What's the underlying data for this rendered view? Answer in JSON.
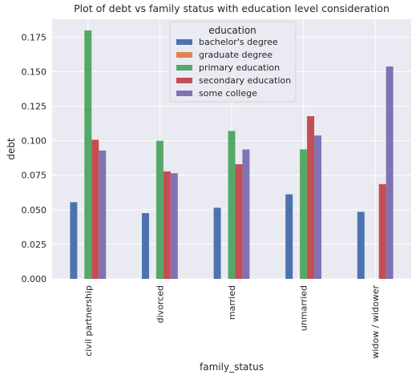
{
  "chart_data": {
    "type": "bar",
    "title": "Plot of debt vs family status with education level consideration",
    "xlabel": "family_status",
    "ylabel": "debt",
    "ylim": [
      0,
      0.188
    ],
    "yticks": [
      "0.000",
      "0.025",
      "0.050",
      "0.075",
      "0.100",
      "0.125",
      "0.150",
      "0.175"
    ],
    "grid": true,
    "legend": {
      "title": "education",
      "placement": "top-center"
    },
    "categories": [
      "civil partnership",
      "divorced",
      "married",
      "unmarried",
      "widow / widower"
    ],
    "series": [
      {
        "name": "bachelor's degree",
        "color": "#4c72b0",
        "values": [
          0.0555,
          0.0476,
          0.0515,
          0.0612,
          0.0485
        ]
      },
      {
        "name": "graduate degree",
        "color": "#dd8452",
        "values": [
          0,
          0,
          0,
          0,
          0
        ]
      },
      {
        "name": "primary education",
        "color": "#55a868",
        "values": [
          0.1799,
          0.1,
          0.1071,
          0.0938,
          0.0
        ]
      },
      {
        "name": "secondary education",
        "color": "#c44e52",
        "values": [
          0.1007,
          0.0778,
          0.083,
          0.1178,
          0.0686
        ]
      },
      {
        "name": "some college",
        "color": "#8172b3",
        "values": [
          0.0929,
          0.0765,
          0.0937,
          0.1038,
          0.1538
        ]
      }
    ]
  }
}
